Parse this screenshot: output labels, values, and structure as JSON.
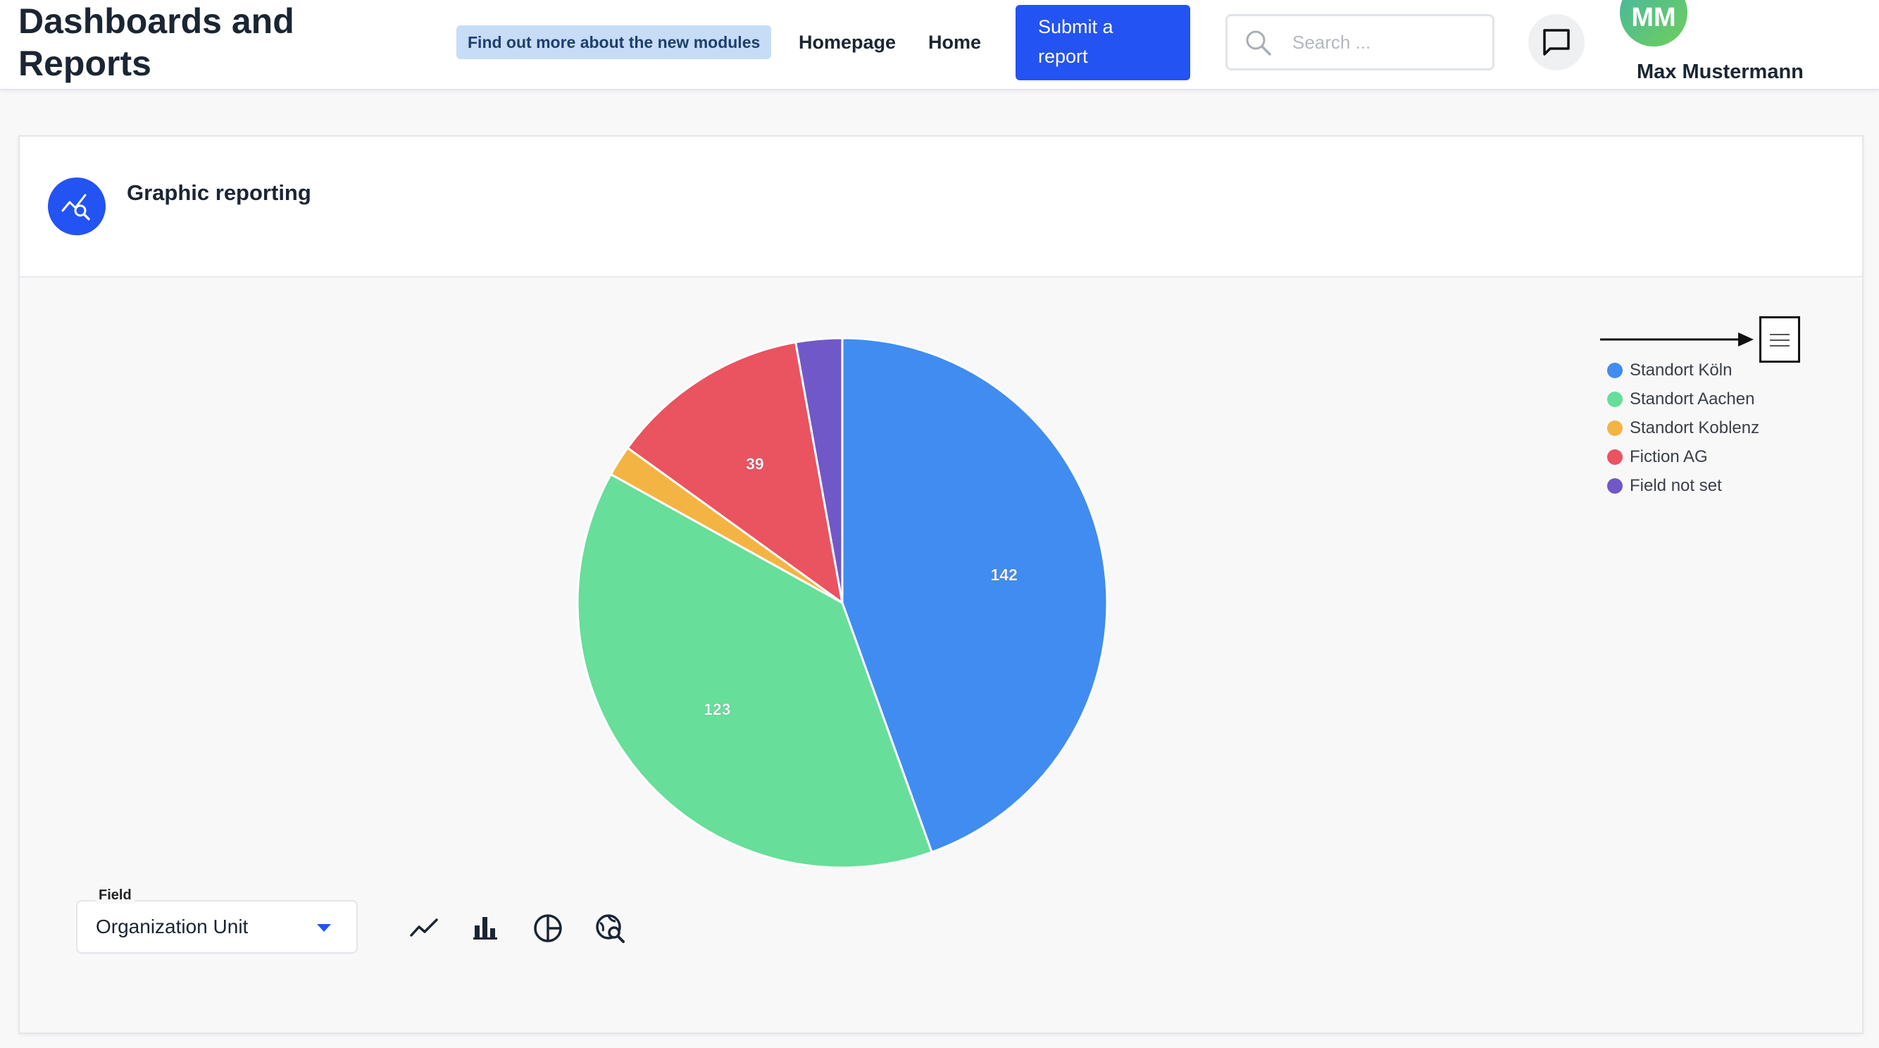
{
  "header": {
    "title": "Dashboards and Reports",
    "info_pill": "Find out more about the new modules",
    "nav": [
      "Homepage",
      "Home"
    ],
    "submit_button": "Submit a report",
    "search_placeholder": "Search ...",
    "avatar_initials": "MM",
    "user_name": "Max Mustermann"
  },
  "card": {
    "title": "Graphic reporting"
  },
  "controls": {
    "field_label": "Field",
    "field_value": "Organization Unit",
    "tools": [
      "line-chart-icon",
      "bar-chart-icon",
      "pie-chart-icon",
      "chart-search-icon"
    ]
  },
  "chart_data": {
    "type": "pie",
    "categories": [
      "Standort Köln",
      "Standort Aachen",
      "Standort Koblenz",
      "Fiction AG",
      "Field not set"
    ],
    "values": [
      142,
      123,
      6,
      39,
      9
    ],
    "data_labels": [
      "142",
      "123",
      "",
      "39",
      ""
    ],
    "colors": [
      "#418cf0",
      "#67de9a",
      "#f4b443",
      "#ea5360",
      "#7158c8"
    ],
    "legend_position": "top-right",
    "title": ""
  }
}
